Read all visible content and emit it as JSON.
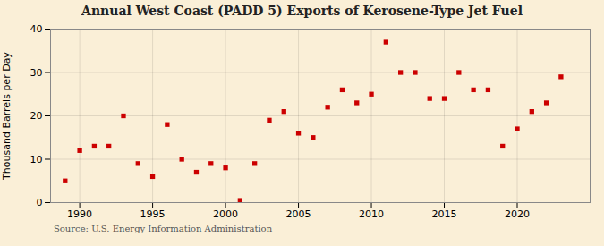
{
  "chart_data": {
    "type": "scatter",
    "title": "Annual West Coast (PADD 5) Exports of Kerosene-Type Jet Fuel",
    "ylabel": "Thousand Barrels per Day",
    "source": "Source: U.S. Energy Information Administration",
    "x": [
      1989,
      1990,
      1991,
      1992,
      1993,
      1994,
      1995,
      1996,
      1997,
      1998,
      1999,
      2000,
      2001,
      2002,
      2003,
      2004,
      2005,
      2006,
      2007,
      2008,
      2009,
      2010,
      2011,
      2012,
      2013,
      2014,
      2015,
      2016,
      2017,
      2018,
      2019,
      2020,
      2021,
      2022,
      2023
    ],
    "values": [
      5,
      12,
      13,
      13,
      20,
      9,
      6,
      18,
      10,
      7,
      9,
      8,
      0.5,
      9,
      19,
      21,
      16,
      15,
      22,
      26,
      23,
      25,
      37,
      30,
      30,
      24,
      24,
      30,
      26,
      26,
      13,
      17,
      21,
      23,
      29
    ],
    "color": "#cc0000",
    "marker": "square",
    "xlim": [
      1988,
      2025
    ],
    "ylim": [
      0,
      40
    ],
    "xticks": [
      1990,
      1995,
      2000,
      2005,
      2010,
      2015,
      2020
    ],
    "yticks": [
      0,
      10,
      20,
      30,
      40
    ],
    "grid": true
  }
}
